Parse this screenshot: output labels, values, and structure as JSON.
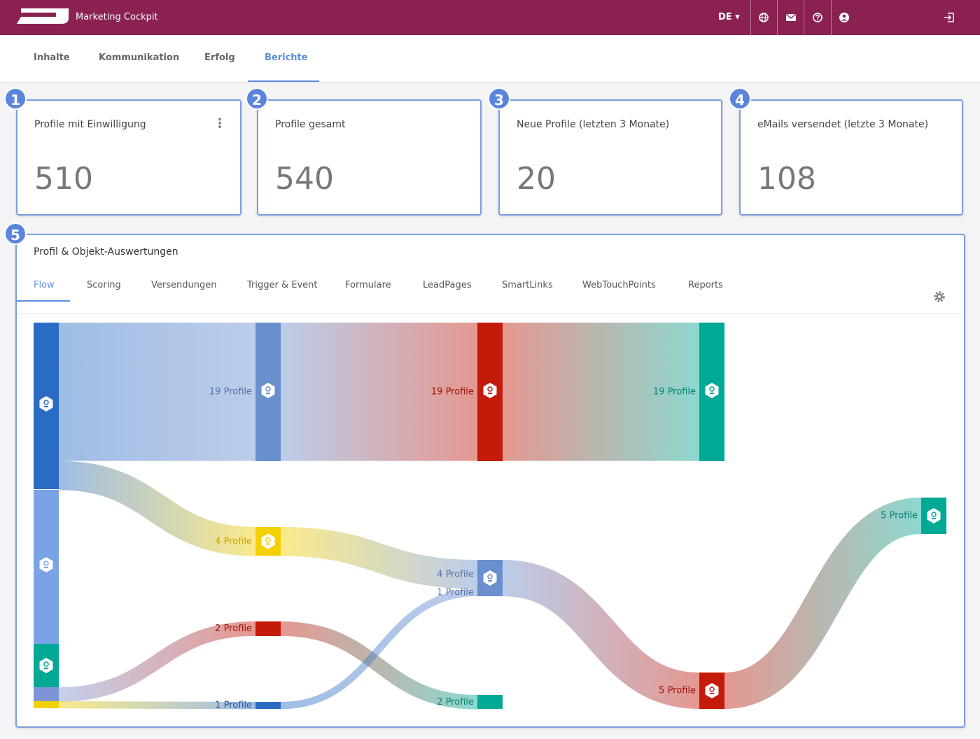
{
  "header": {
    "brand": "Marketing Cockpit",
    "language": "DE"
  },
  "nav": {
    "tabs": [
      "Inhalte",
      "Kommunikation",
      "Erfolg",
      "Berichte"
    ],
    "active": 3
  },
  "badges": [
    "1",
    "2",
    "3",
    "4",
    "5"
  ],
  "kpis": [
    {
      "title": "Profile mit Einwilligung",
      "value": 510
    },
    {
      "title": "Profile gesamt",
      "value": 540
    },
    {
      "title": "Neue Profile (letzten 3 Monate)",
      "value": 20
    },
    {
      "title": "eMails versendet (letzte 3 Monate)",
      "value": 108
    }
  ],
  "panel": {
    "title": "Profil & Objekt-Auswertungen",
    "tabs": [
      "Flow",
      "Scoring",
      "Versendungen",
      "Trigger & Event",
      "Formulare",
      "LeadPages",
      "SmartLinks",
      "WebTouchPoints",
      "Reports"
    ],
    "active": 0
  },
  "sankey": {
    "nodes": [
      {
        "color": "#2a6bc4"
      },
      {
        "color": "#7aa3e6"
      },
      {
        "color": "#00a896"
      },
      {
        "color": "#7d95d6"
      },
      {
        "color": "#f5d000"
      },
      {
        "color": "#6a8fcf"
      },
      {
        "color": "#f5d000"
      },
      {
        "color": "#c41a0a"
      },
      {
        "color": "#2a6bc4"
      },
      {
        "color": "#c41a0a"
      },
      {
        "color": "#6a8fcf"
      },
      {
        "color": "#00a896"
      },
      {
        "color": "#00a896"
      },
      {
        "color": "#c41a0a"
      },
      {
        "color": "#00a896"
      }
    ],
    "links": [
      {
        "source": 0,
        "target": 5,
        "value": 19,
        "label": "19 Profile"
      },
      {
        "source": 0,
        "target": 6,
        "value": 4,
        "label": "4 Profile"
      },
      {
        "source": 3,
        "target": 7,
        "value": 2,
        "label": "2 Profile"
      },
      {
        "source": 4,
        "target": 8,
        "value": 1,
        "label": "1 Profile"
      },
      {
        "source": 5,
        "target": 9,
        "value": 19,
        "label": "19 Profile"
      },
      {
        "source": 6,
        "target": 10,
        "value": 4,
        "label": "4 Profile"
      },
      {
        "source": 7,
        "target": 11,
        "value": 2,
        "label": "2 Profile"
      },
      {
        "source": 8,
        "target": 10,
        "value": 1,
        "label": "1 Profile"
      },
      {
        "source": 9,
        "target": 12,
        "value": 19,
        "label": "19 Profile"
      },
      {
        "source": 10,
        "target": 13,
        "value": 5,
        "label": "5 Profile"
      },
      {
        "source": 13,
        "target": 14,
        "value": 5,
        "label": "5 Profile"
      }
    ]
  }
}
